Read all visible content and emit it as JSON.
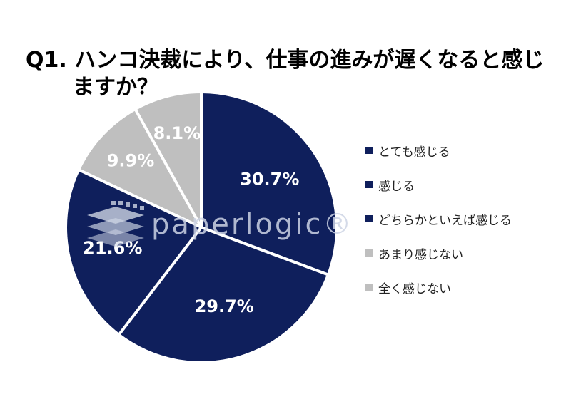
{
  "title": {
    "line1": "Q1. ハンコ決裁により、仕事の進みが遅くなると感じ",
    "line2": "ますか？"
  },
  "watermark": {
    "text": "paperlogic®"
  },
  "colors": {
    "dark": "#0f1f5c",
    "light": "#bfbfbf",
    "divider": "#ffffff",
    "dark_label": "#ffffff",
    "light_label": "#ffffff"
  },
  "chart_data": {
    "type": "pie",
    "title": "Q1. ハンコ決裁により、仕事の進みが遅くなると感じますか？",
    "start": "12 o'clock",
    "direction": "clockwise",
    "legend_position": "right",
    "slices": [
      {
        "label": "とても感じる",
        "value": 30.7,
        "display": "30.7%",
        "tone": "dark"
      },
      {
        "label": "感じる",
        "value": 29.7,
        "display": "29.7%",
        "tone": "dark"
      },
      {
        "label": "どちらかといえば感じる",
        "value": 21.6,
        "display": "21.6%",
        "tone": "dark"
      },
      {
        "label": "あまり感じない",
        "value": 9.9,
        "display": "9.9%",
        "tone": "light"
      },
      {
        "label": "全く感じない",
        "value": 8.1,
        "display": "8.1%",
        "tone": "light"
      }
    ]
  }
}
